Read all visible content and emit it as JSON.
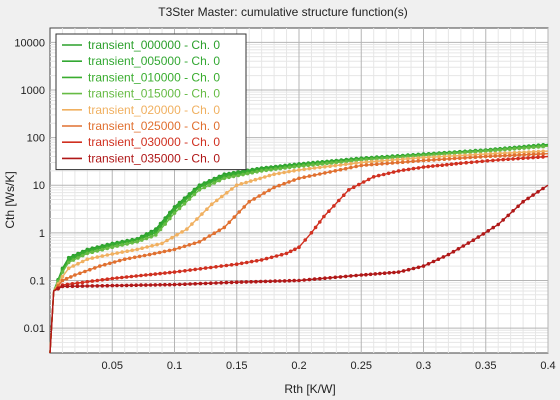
{
  "chart_data": {
    "type": "line",
    "title": "T3Ster Master: cumulative structure function(s)",
    "xlabel": "Rth  [K/W]",
    "ylabel": "Cth  [Ws/K]",
    "y_scale": "log",
    "xlim": [
      0,
      0.4
    ],
    "ylim": [
      0.003,
      20000
    ],
    "x_ticks": [
      0.05,
      0.1,
      0.15,
      0.2,
      0.25,
      0.3,
      0.35,
      0.4
    ],
    "x_tick_labels": [
      "0.05",
      "0.1",
      "0.15",
      "0.2",
      "0.25",
      "0.3",
      "0.35",
      "0.4"
    ],
    "y_ticks": [
      0.01,
      0.1,
      1,
      10,
      100,
      1000,
      10000
    ],
    "y_tick_labels": [
      "0.01",
      "0.1",
      "1",
      "10",
      "100",
      "1000",
      "10000"
    ],
    "grid": true,
    "legend_position": "top-left",
    "series": [
      {
        "name": "transient_000000 - Ch. 0",
        "color": "#2ca02c",
        "points": [
          [
            0.0,
            0.003
          ],
          [
            0.003,
            0.06
          ],
          [
            0.01,
            0.18
          ],
          [
            0.015,
            0.3
          ],
          [
            0.03,
            0.45
          ],
          [
            0.05,
            0.6
          ],
          [
            0.07,
            0.75
          ],
          [
            0.085,
            1.2
          ],
          [
            0.1,
            3.5
          ],
          [
            0.12,
            10
          ],
          [
            0.14,
            17
          ],
          [
            0.17,
            23
          ],
          [
            0.2,
            28
          ],
          [
            0.23,
            33
          ],
          [
            0.25,
            37
          ],
          [
            0.3,
            45
          ],
          [
            0.35,
            55
          ],
          [
            0.4,
            72
          ]
        ]
      },
      {
        "name": "transient_005000 - Ch. 0",
        "color": "#33a833",
        "points": [
          [
            0.0,
            0.003
          ],
          [
            0.003,
            0.06
          ],
          [
            0.01,
            0.17
          ],
          [
            0.015,
            0.28
          ],
          [
            0.03,
            0.42
          ],
          [
            0.05,
            0.57
          ],
          [
            0.07,
            0.72
          ],
          [
            0.085,
            1.1
          ],
          [
            0.1,
            3.2
          ],
          [
            0.12,
            9.5
          ],
          [
            0.14,
            16
          ],
          [
            0.17,
            22
          ],
          [
            0.2,
            27
          ],
          [
            0.23,
            32
          ],
          [
            0.25,
            36
          ],
          [
            0.3,
            44
          ],
          [
            0.35,
            54
          ],
          [
            0.4,
            70
          ]
        ]
      },
      {
        "name": "transient_010000 - Ch. 0",
        "color": "#3aad2f",
        "points": [
          [
            0.0,
            0.003
          ],
          [
            0.003,
            0.06
          ],
          [
            0.01,
            0.16
          ],
          [
            0.015,
            0.26
          ],
          [
            0.03,
            0.4
          ],
          [
            0.05,
            0.54
          ],
          [
            0.07,
            0.7
          ],
          [
            0.085,
            1.0
          ],
          [
            0.1,
            3.0
          ],
          [
            0.12,
            9
          ],
          [
            0.14,
            15
          ],
          [
            0.17,
            21
          ],
          [
            0.2,
            26
          ],
          [
            0.23,
            31
          ],
          [
            0.25,
            35
          ],
          [
            0.3,
            43
          ],
          [
            0.35,
            53
          ],
          [
            0.4,
            68
          ]
        ]
      },
      {
        "name": "transient_015000 - Ch. 0",
        "color": "#66bb44",
        "points": [
          [
            0.0,
            0.003
          ],
          [
            0.003,
            0.06
          ],
          [
            0.01,
            0.15
          ],
          [
            0.015,
            0.24
          ],
          [
            0.03,
            0.37
          ],
          [
            0.05,
            0.5
          ],
          [
            0.07,
            0.65
          ],
          [
            0.085,
            0.9
          ],
          [
            0.1,
            2.6
          ],
          [
            0.12,
            8
          ],
          [
            0.14,
            14
          ],
          [
            0.17,
            20
          ],
          [
            0.2,
            25
          ],
          [
            0.23,
            30
          ],
          [
            0.25,
            34
          ],
          [
            0.3,
            42
          ],
          [
            0.35,
            52
          ],
          [
            0.4,
            66
          ]
        ]
      },
      {
        "name": "transient_020000 - Ch. 0",
        "color": "#f0b060",
        "points": [
          [
            0.0,
            0.003
          ],
          [
            0.003,
            0.06
          ],
          [
            0.01,
            0.12
          ],
          [
            0.015,
            0.18
          ],
          [
            0.03,
            0.28
          ],
          [
            0.05,
            0.36
          ],
          [
            0.07,
            0.45
          ],
          [
            0.09,
            0.6
          ],
          [
            0.11,
            1.2
          ],
          [
            0.13,
            4
          ],
          [
            0.15,
            10
          ],
          [
            0.18,
            17
          ],
          [
            0.2,
            21
          ],
          [
            0.25,
            30
          ],
          [
            0.3,
            38
          ],
          [
            0.35,
            45
          ],
          [
            0.4,
            52
          ]
        ]
      },
      {
        "name": "transient_025000 - Ch. 0",
        "color": "#e07030",
        "points": [
          [
            0.0,
            0.003
          ],
          [
            0.003,
            0.06
          ],
          [
            0.01,
            0.1
          ],
          [
            0.02,
            0.13
          ],
          [
            0.04,
            0.2
          ],
          [
            0.06,
            0.28
          ],
          [
            0.08,
            0.35
          ],
          [
            0.1,
            0.45
          ],
          [
            0.12,
            0.65
          ],
          [
            0.14,
            1.3
          ],
          [
            0.16,
            4.5
          ],
          [
            0.18,
            9
          ],
          [
            0.2,
            14
          ],
          [
            0.25,
            26
          ],
          [
            0.3,
            33
          ],
          [
            0.35,
            40
          ],
          [
            0.4,
            46
          ]
        ]
      },
      {
        "name": "transient_030000 - Ch. 0",
        "color": "#d03020",
        "points": [
          [
            0.0,
            0.003
          ],
          [
            0.003,
            0.06
          ],
          [
            0.01,
            0.08
          ],
          [
            0.05,
            0.11
          ],
          [
            0.1,
            0.15
          ],
          [
            0.15,
            0.22
          ],
          [
            0.17,
            0.27
          ],
          [
            0.19,
            0.37
          ],
          [
            0.2,
            0.5
          ],
          [
            0.21,
            1.0
          ],
          [
            0.22,
            2.2
          ],
          [
            0.24,
            8
          ],
          [
            0.26,
            15
          ],
          [
            0.28,
            20
          ],
          [
            0.3,
            24
          ],
          [
            0.33,
            29
          ],
          [
            0.36,
            34
          ],
          [
            0.4,
            40
          ]
        ]
      },
      {
        "name": "transient_035000 - Ch. 0",
        "color": "#b01818",
        "points": [
          [
            0.0,
            0.003
          ],
          [
            0.003,
            0.06
          ],
          [
            0.01,
            0.075
          ],
          [
            0.05,
            0.078
          ],
          [
            0.1,
            0.082
          ],
          [
            0.15,
            0.092
          ],
          [
            0.2,
            0.1
          ],
          [
            0.25,
            0.13
          ],
          [
            0.28,
            0.15
          ],
          [
            0.3,
            0.2
          ],
          [
            0.32,
            0.35
          ],
          [
            0.34,
            0.7
          ],
          [
            0.36,
            1.5
          ],
          [
            0.38,
            4.5
          ],
          [
            0.4,
            10
          ]
        ]
      }
    ]
  }
}
